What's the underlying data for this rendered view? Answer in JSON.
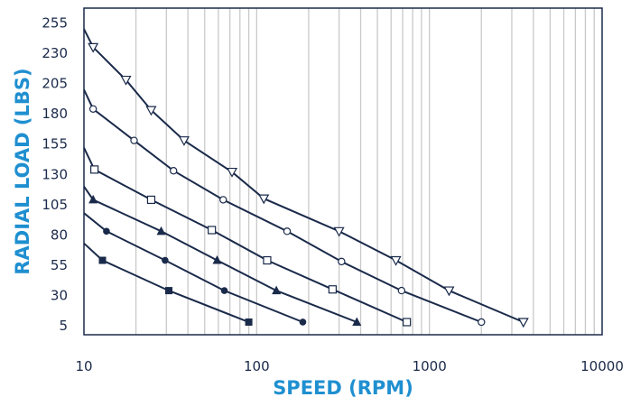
{
  "chart_data": {
    "type": "line",
    "xlabel": "SPEED (RPM)",
    "ylabel": "RADIAL LOAD (LBS)",
    "x_scale": "log",
    "xlim": [
      10,
      10000
    ],
    "ylim": [
      5,
      270
    ],
    "x_ticks": [
      10,
      100,
      1000,
      10000
    ],
    "x_tick_labels": [
      "10",
      "100",
      "1000",
      "10000"
    ],
    "y_ticks": [
      5,
      30,
      55,
      80,
      105,
      130,
      155,
      180,
      205,
      230,
      255
    ],
    "y_tick_labels": [
      "5",
      "30",
      "55",
      "80",
      "105",
      "130",
      "155",
      "180",
      "205",
      "230",
      "255"
    ],
    "grid": "vertical minor lines at each log subdivision",
    "colors": {
      "axis_title": "#1f8fd0",
      "grid": "#c9c9c9",
      "line": "#1a2a4a"
    },
    "series": [
      {
        "marker": "triangle-down",
        "x": [
          10,
          11.3,
          17.5,
          24.5,
          38,
          72,
          110,
          300,
          640,
          1300,
          3500
        ],
        "y": [
          250,
          235,
          208,
          183,
          158,
          132,
          110,
          83,
          59,
          34,
          8
        ]
      },
      {
        "marker": "circle-open",
        "x": [
          10,
          11.3,
          19.5,
          33,
          64,
          150,
          310,
          690,
          2000
        ],
        "y": [
          200,
          184,
          158,
          133,
          109,
          83,
          58,
          34,
          8
        ]
      },
      {
        "marker": "square-open",
        "x": [
          10,
          11.5,
          24.5,
          55,
          115,
          275,
          740
        ],
        "y": [
          152,
          134,
          109,
          84,
          59,
          35,
          8
        ]
      },
      {
        "marker": "triangle-up",
        "x": [
          10,
          11.3,
          28,
          59,
          130,
          380
        ],
        "y": [
          120,
          109,
          83,
          59,
          34,
          8
        ]
      },
      {
        "marker": "circle-filled",
        "x": [
          10,
          13.5,
          29.5,
          65,
          185
        ],
        "y": [
          98,
          83,
          59,
          34,
          8
        ]
      },
      {
        "marker": "square-filled",
        "x": [
          10,
          12.8,
          31,
          90
        ],
        "y": [
          73,
          59,
          34,
          8
        ]
      }
    ]
  }
}
